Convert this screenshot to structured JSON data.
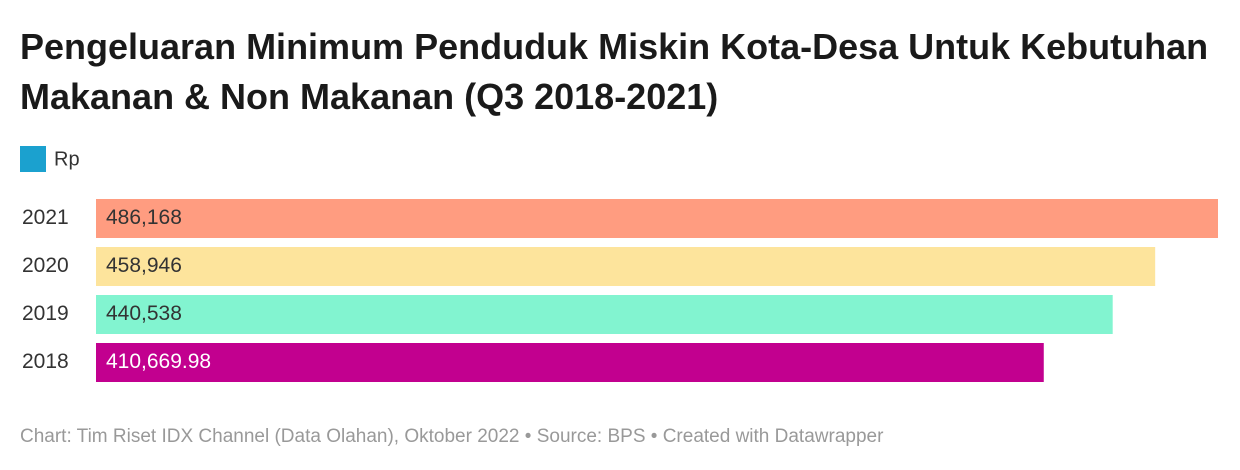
{
  "chart_data": {
    "type": "bar",
    "orientation": "horizontal",
    "title": "Pengeluaran Minimum Penduduk Miskin Kota-Desa Untuk Kebutuhan Makanan & Non Makanan (Q3 2018-2021)",
    "categories": [
      "2021",
      "2020",
      "2019",
      "2018"
    ],
    "series": [
      {
        "name": "Rp",
        "color": "#1ba1cf",
        "values": [
          486168,
          458946,
          440538,
          410669.98
        ],
        "value_labels": [
          "486,168",
          "458,946",
          "440,538",
          "410,669.98"
        ],
        "colors": [
          "#ff9c80",
          "#fde49c",
          "#82f4d0",
          "#c2008f"
        ],
        "label_colors": [
          "#333333",
          "#333333",
          "#333333",
          "#ffffff"
        ]
      }
    ],
    "xlim": [
      0,
      486168
    ],
    "source": "Chart: Tim Riset IDX Channel (Data Olahan), Oktober 2022 • Source: BPS • Created with Datawrapper"
  }
}
